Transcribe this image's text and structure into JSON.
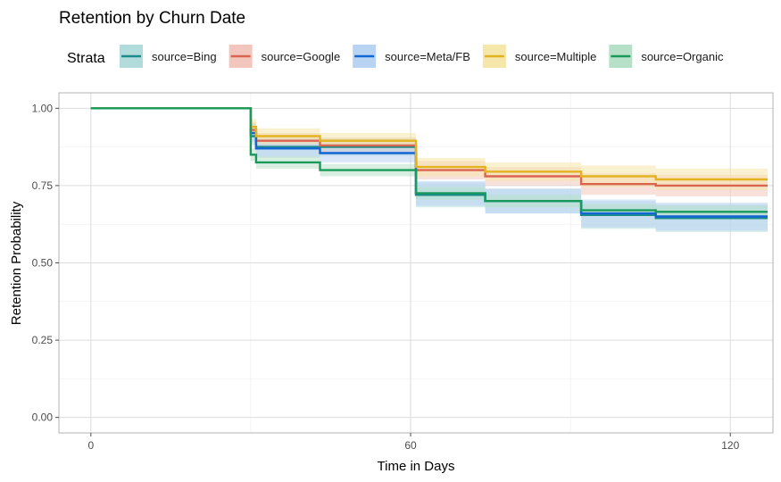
{
  "chart_data": {
    "type": "line",
    "subtype": "kaplan-meier step curves with confidence bands",
    "title": "Retention by Churn Date",
    "xlabel": "Time in Days",
    "ylabel": "Retention Probability",
    "xlim": [
      -6,
      128
    ],
    "ylim": [
      -0.05,
      1.05
    ],
    "x_ticks": [
      0,
      60,
      120
    ],
    "y_ticks": [
      0.0,
      0.25,
      0.5,
      0.75,
      1.0
    ],
    "x_tick_labels": [
      "0",
      "60",
      "120"
    ],
    "y_tick_labels": [
      "0.00",
      "0.25",
      "0.50",
      "0.75",
      "1.00"
    ],
    "grid": true,
    "legend": {
      "title": "Strata",
      "position": "top"
    },
    "series": [
      {
        "name": "source=Bing",
        "color": "#1b8a8a",
        "fill": "#b2dcdc",
        "steps": [
          [
            0,
            1.0
          ],
          [
            30,
            0.91
          ],
          [
            31,
            0.875
          ],
          [
            61,
            0.72
          ],
          [
            74,
            0.7
          ],
          [
            92,
            0.655
          ],
          [
            106,
            0.645
          ],
          [
            127,
            0.645
          ]
        ],
        "band": [
          [
            0,
            0.0,
            0.0
          ],
          [
            30,
            0.03,
            0.03
          ],
          [
            61,
            0.04,
            0.04
          ],
          [
            92,
            0.045,
            0.045
          ],
          [
            127,
            0.045,
            0.045
          ]
        ]
      },
      {
        "name": "source=Google",
        "color": "#d9644f",
        "fill": "#f2c6bd",
        "steps": [
          [
            0,
            1.0
          ],
          [
            30,
            0.93
          ],
          [
            31,
            0.895
          ],
          [
            43,
            0.88
          ],
          [
            61,
            0.8
          ],
          [
            74,
            0.78
          ],
          [
            92,
            0.755
          ],
          [
            106,
            0.75
          ],
          [
            127,
            0.75
          ]
        ],
        "band": [
          [
            0,
            0.0,
            0.0
          ],
          [
            30,
            0.025,
            0.025
          ],
          [
            61,
            0.03,
            0.03
          ],
          [
            92,
            0.035,
            0.035
          ],
          [
            127,
            0.035,
            0.035
          ]
        ]
      },
      {
        "name": "source=Meta/FB",
        "color": "#1266d4",
        "fill": "#b9d3f3",
        "steps": [
          [
            0,
            1.0
          ],
          [
            30,
            0.92
          ],
          [
            31,
            0.87
          ],
          [
            43,
            0.855
          ],
          [
            61,
            0.725
          ],
          [
            74,
            0.7
          ],
          [
            92,
            0.66
          ],
          [
            106,
            0.65
          ],
          [
            127,
            0.65
          ]
        ],
        "band": [
          [
            0,
            0.0,
            0.0
          ],
          [
            30,
            0.03,
            0.03
          ],
          [
            61,
            0.04,
            0.04
          ],
          [
            92,
            0.045,
            0.045
          ],
          [
            127,
            0.045,
            0.045
          ]
        ]
      },
      {
        "name": "source=Multiple",
        "color": "#e3b31f",
        "fill": "#f5e6aa",
        "steps": [
          [
            0,
            1.0
          ],
          [
            30,
            0.94
          ],
          [
            31,
            0.91
          ],
          [
            43,
            0.895
          ],
          [
            61,
            0.81
          ],
          [
            74,
            0.795
          ],
          [
            92,
            0.78
          ],
          [
            106,
            0.77
          ],
          [
            127,
            0.77
          ]
        ],
        "band": [
          [
            0,
            0.0,
            0.0
          ],
          [
            30,
            0.025,
            0.025
          ],
          [
            61,
            0.03,
            0.03
          ],
          [
            92,
            0.035,
            0.035
          ],
          [
            127,
            0.035,
            0.035
          ]
        ]
      },
      {
        "name": "source=Organic",
        "color": "#1a9a5a",
        "fill": "#b7e0c9",
        "steps": [
          [
            0,
            1.0
          ],
          [
            30,
            0.85
          ],
          [
            31,
            0.825
          ],
          [
            43,
            0.8
          ],
          [
            61,
            0.725
          ],
          [
            74,
            0.7
          ],
          [
            92,
            0.67
          ],
          [
            106,
            0.665
          ],
          [
            127,
            0.665
          ]
        ],
        "band": [
          [
            0,
            0.0,
            0.0
          ],
          [
            30,
            0.02,
            0.02
          ],
          [
            61,
            0.02,
            0.02
          ],
          [
            92,
            0.02,
            0.02
          ],
          [
            127,
            0.02,
            0.02
          ]
        ]
      }
    ]
  }
}
